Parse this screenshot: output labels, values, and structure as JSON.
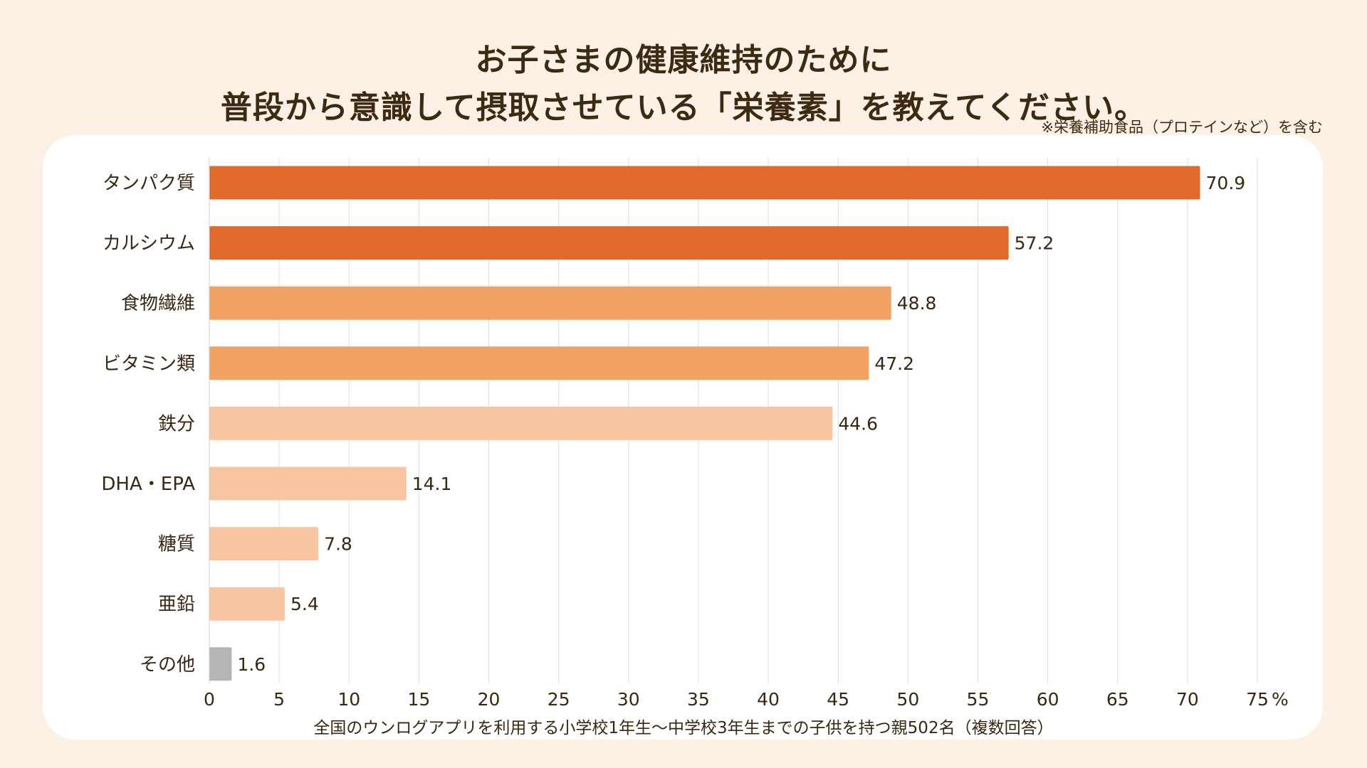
{
  "title_line1": "お子さまの健康維持のために",
  "title_line2": "普段から意識して摂取させている「栄養素」を教えてください。",
  "note": "※栄養補助食品（プロテインなど）を含む",
  "footnote": "全国のウンログアプリを利用する小学校1年生〜中学校3年生までの子供を持つ親502名（複数回答）",
  "colors": {
    "background": "#FDF1E6",
    "card": "#FFFFFF",
    "dark_orange": "#E06A2C",
    "mid_orange": "#F2A263",
    "light_orange": "#F7C6A0",
    "gray": "#B5B5B5",
    "grid": "#DDDDDD"
  },
  "chart_data": {
    "type": "bar",
    "orientation": "horizontal",
    "title": "お子さまの健康維持のために普段から意識して摂取させている「栄養素」を教えてください。",
    "xlabel": "",
    "ylabel": "",
    "unit": "%",
    "xlim": [
      0,
      75
    ],
    "xticks": [
      0,
      5,
      10,
      15,
      20,
      25,
      30,
      35,
      40,
      45,
      50,
      55,
      60,
      65,
      70,
      75
    ],
    "grid": true,
    "categories": [
      "タンパク質",
      "カルシウム",
      "食物繊維",
      "ビタミン類",
      "鉄分",
      "DHA・EPA",
      "糖質",
      "亜鉛",
      "その他"
    ],
    "values": [
      70.9,
      57.2,
      48.8,
      47.2,
      44.6,
      14.1,
      7.8,
      5.4,
      1.6
    ],
    "value_labels": [
      "70.9",
      "57.2",
      "48.8",
      "47.2",
      "44.6",
      "14.1",
      "7.8",
      "5.4",
      "1.6"
    ],
    "bar_colors": [
      "#E06A2C",
      "#E06A2C",
      "#F2A263",
      "#F2A263",
      "#F7C6A0",
      "#F7C6A0",
      "#F7C6A0",
      "#F7C6A0",
      "#B5B5B5"
    ]
  }
}
